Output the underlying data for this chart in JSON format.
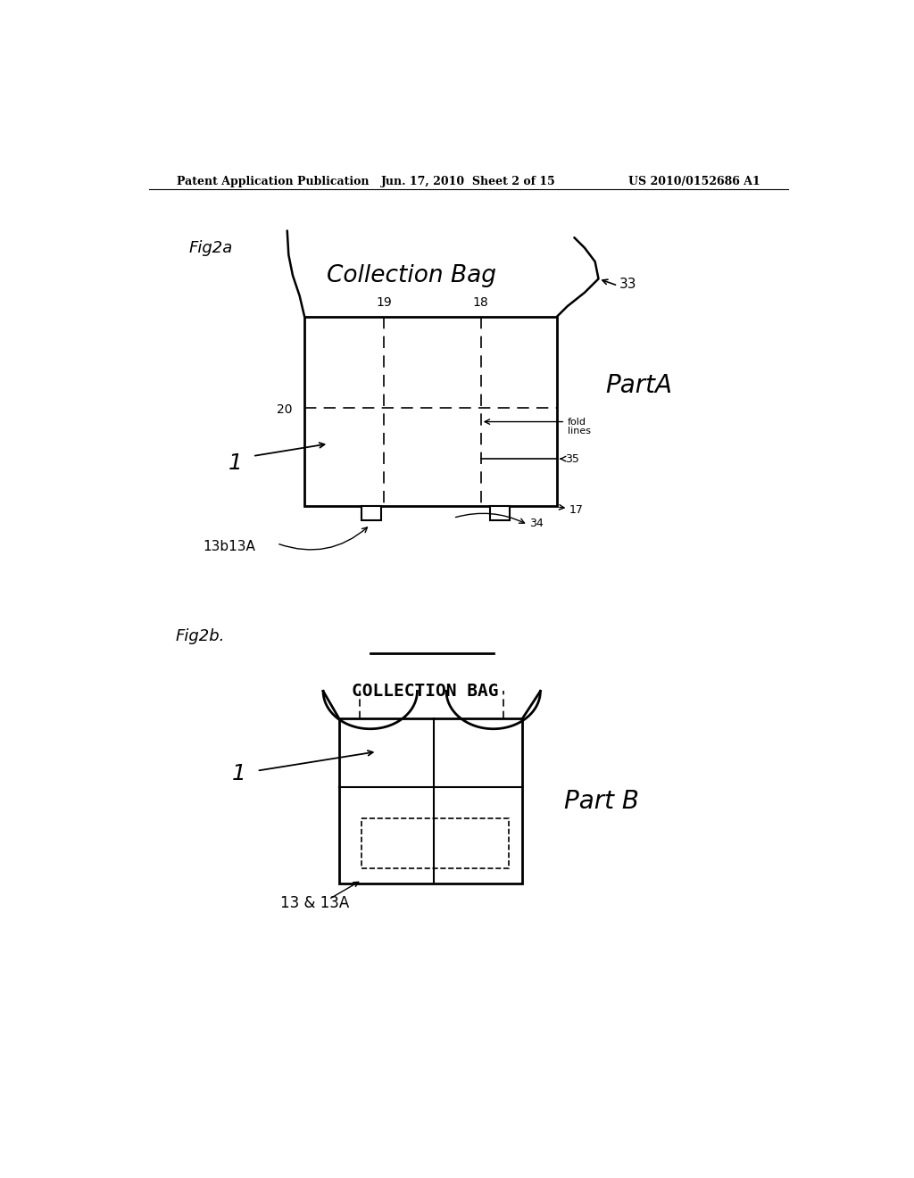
{
  "background_color": "#ffffff",
  "header_left": "Patent Application Publication",
  "header_center": "Jun. 17, 2010  Sheet 2 of 15",
  "header_right": "US 2010/0152686 A1",
  "fig2a_label": "Fig2a",
  "fig2b_label": "Fig2b.",
  "fig2a_title": "Collection Bag",
  "fig2b_title": "COLLECTION BAG",
  "fig2a_partA": "PartA",
  "fig2b_partB": "Part B",
  "line_color": "#000000",
  "text_color": "#000000"
}
